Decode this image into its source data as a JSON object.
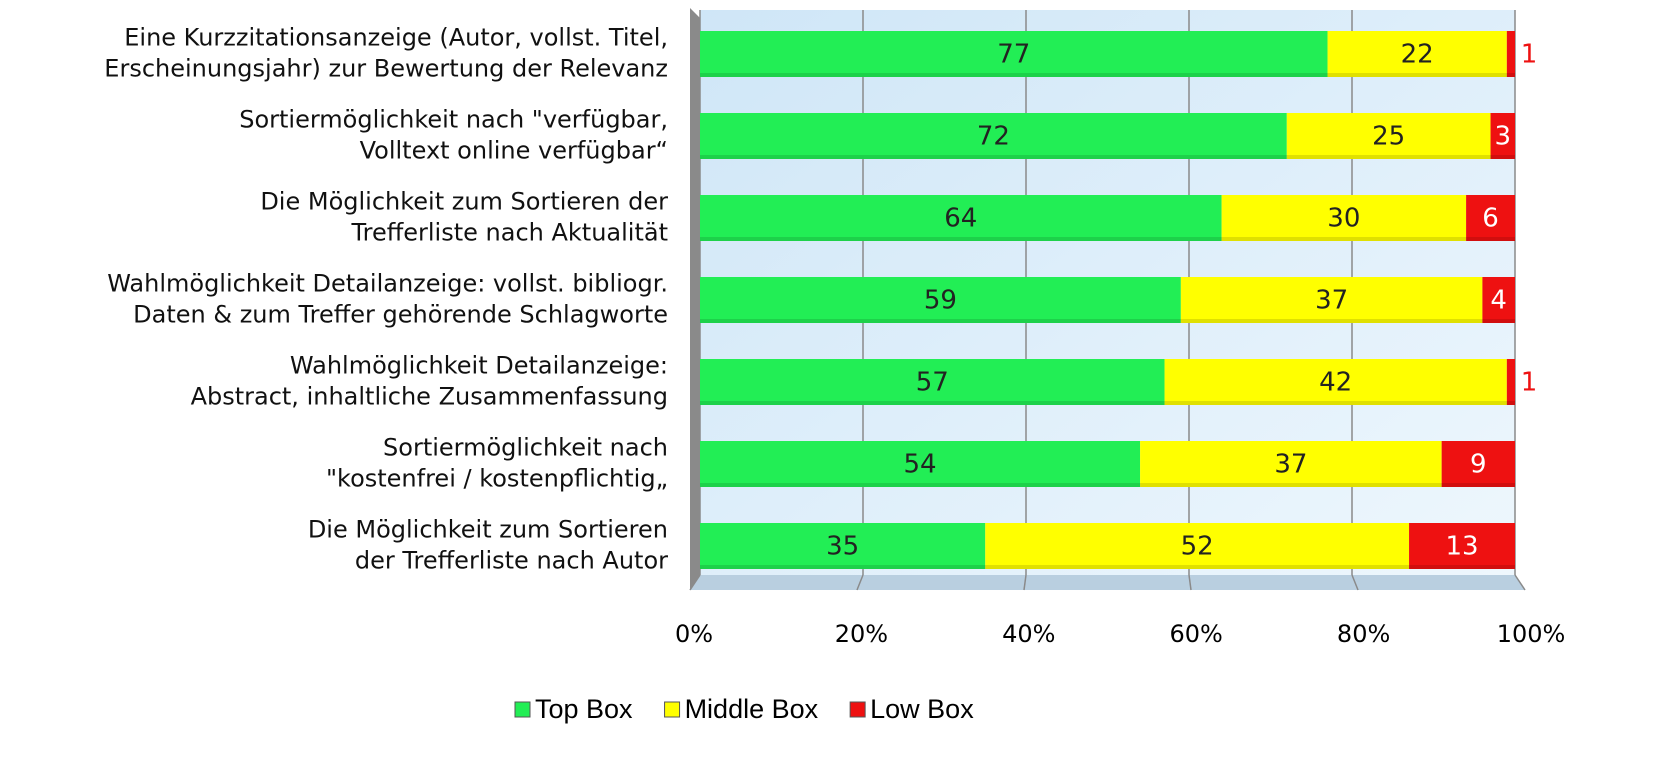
{
  "chart_data": {
    "type": "stacked-bar-horizontal",
    "categories": [
      "Eine Kurzzitationsanzeige (Autor, vollst. Titel,\nErscheinungsjahr) zur Bewertung der Relevanz",
      "Sortiermöglichkeit nach \"verfügbar,\nVolltext online verfügbar“",
      "Die Möglichkeit zum Sortieren der\nTrefferliste nach Aktualität",
      "Wahlmöglichkeit Detailanzeige: vollst. bibliogr.\nDaten & zum Treffer gehörende Schlagworte",
      "Wahlmöglichkeit Detailanzeige:\nAbstract, inhaltliche Zusammenfassung",
      "Sortiermöglichkeit nach\n\"kostenfrei / kostenpflichtig„",
      "Die Möglichkeit zum Sortieren\nder Trefferliste nach Autor"
    ],
    "series": [
      {
        "name": "Top Box",
        "color": "#22ee55",
        "values": [
          77,
          72,
          64,
          59,
          57,
          54,
          35
        ]
      },
      {
        "name": "Middle Box",
        "color": "#ffff00",
        "values": [
          22,
          25,
          30,
          37,
          42,
          37,
          52
        ]
      },
      {
        "name": "Low Box",
        "color": "#ee1111",
        "values": [
          1,
          3,
          6,
          4,
          1,
          9,
          13
        ]
      }
    ],
    "xlim": [
      0,
      100
    ],
    "xticks": [
      {
        "value": 0,
        "label": "0%"
      },
      {
        "value": 20,
        "label": "20%"
      },
      {
        "value": 40,
        "label": "40%"
      },
      {
        "value": 60,
        "label": "60%"
      },
      {
        "value": 80,
        "label": "80%"
      },
      {
        "value": 100,
        "label": "100%"
      }
    ],
    "grid": true,
    "legend": "bottom"
  }
}
